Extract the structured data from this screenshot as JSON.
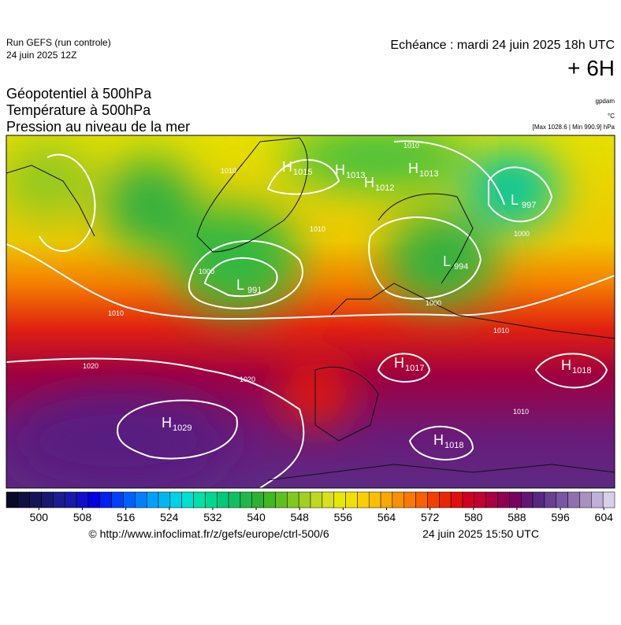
{
  "header": {
    "run": "Run GEFS (run controle)",
    "run_date": "24 juin 2025 12Z",
    "valid": "Echéance : mardi 24 juin 2025 18h UTC",
    "lead": "+ 6H"
  },
  "titles": [
    "Géopotentiel à 500hPa",
    "Température à 500hPa",
    "Pression au niveau de la mer"
  ],
  "units": {
    "geopotential": "gpdam",
    "temperature": "°C",
    "pressure": "[Max 1028.6 | Min 990.9] hPa"
  },
  "pressure_centers": [
    {
      "kind": "H",
      "value": 1015
    },
    {
      "kind": "H",
      "value": 1013
    },
    {
      "kind": "H",
      "value": 1012
    },
    {
      "kind": "H",
      "value": 1013
    },
    {
      "kind": "L",
      "value": 997
    },
    {
      "kind": "L",
      "value": 991
    },
    {
      "kind": "L",
      "value": 994
    },
    {
      "kind": "H",
      "value": 1017
    },
    {
      "kind": "H",
      "value": 1018
    },
    {
      "kind": "H",
      "value": 1029
    },
    {
      "kind": "H",
      "value": 1018
    }
  ],
  "isobar_labels": [
    1010,
    1010,
    1010,
    1000,
    1000,
    1010,
    1020,
    1020,
    1010,
    1000,
    1010
  ],
  "colorbar": {
    "lim": [
      494,
      606
    ],
    "ticks": [
      500,
      508,
      516,
      524,
      532,
      540,
      548,
      556,
      564,
      572,
      580,
      588,
      596,
      604
    ],
    "colors": [
      "#0a0a28",
      "#101040",
      "#141458",
      "#181870",
      "#1c1c90",
      "#1a1aa8",
      "#1010c8",
      "#0000e0",
      "#0020f0",
      "#0040f8",
      "#0060ff",
      "#0080ff",
      "#00a0ff",
      "#00b8f0",
      "#00d0e8",
      "#00e0d0",
      "#00e0a8",
      "#00d890",
      "#00c878",
      "#10c060",
      "#20b848",
      "#30b030",
      "#40b820",
      "#60c020",
      "#80c820",
      "#a0d020",
      "#c0d820",
      "#d8e020",
      "#e8e800",
      "#f0e000",
      "#f8d000",
      "#f8c000",
      "#f8a800",
      "#f89000",
      "#f87800",
      "#f86000",
      "#f04000",
      "#e82800",
      "#e01010",
      "#d00020",
      "#c00030",
      "#a80040",
      "#900050",
      "#780060",
      "#601870",
      "#582880",
      "#684090",
      "#7858a0",
      "#9070b0",
      "#a890c0",
      "#c0b0d8",
      "#d8d0e8"
    ]
  },
  "footer": {
    "source": "© http://www.infoclimat.fr/z/gefs/europe/ctrl-500/6",
    "issued": "24 juin 2025 15:50 UTC"
  }
}
